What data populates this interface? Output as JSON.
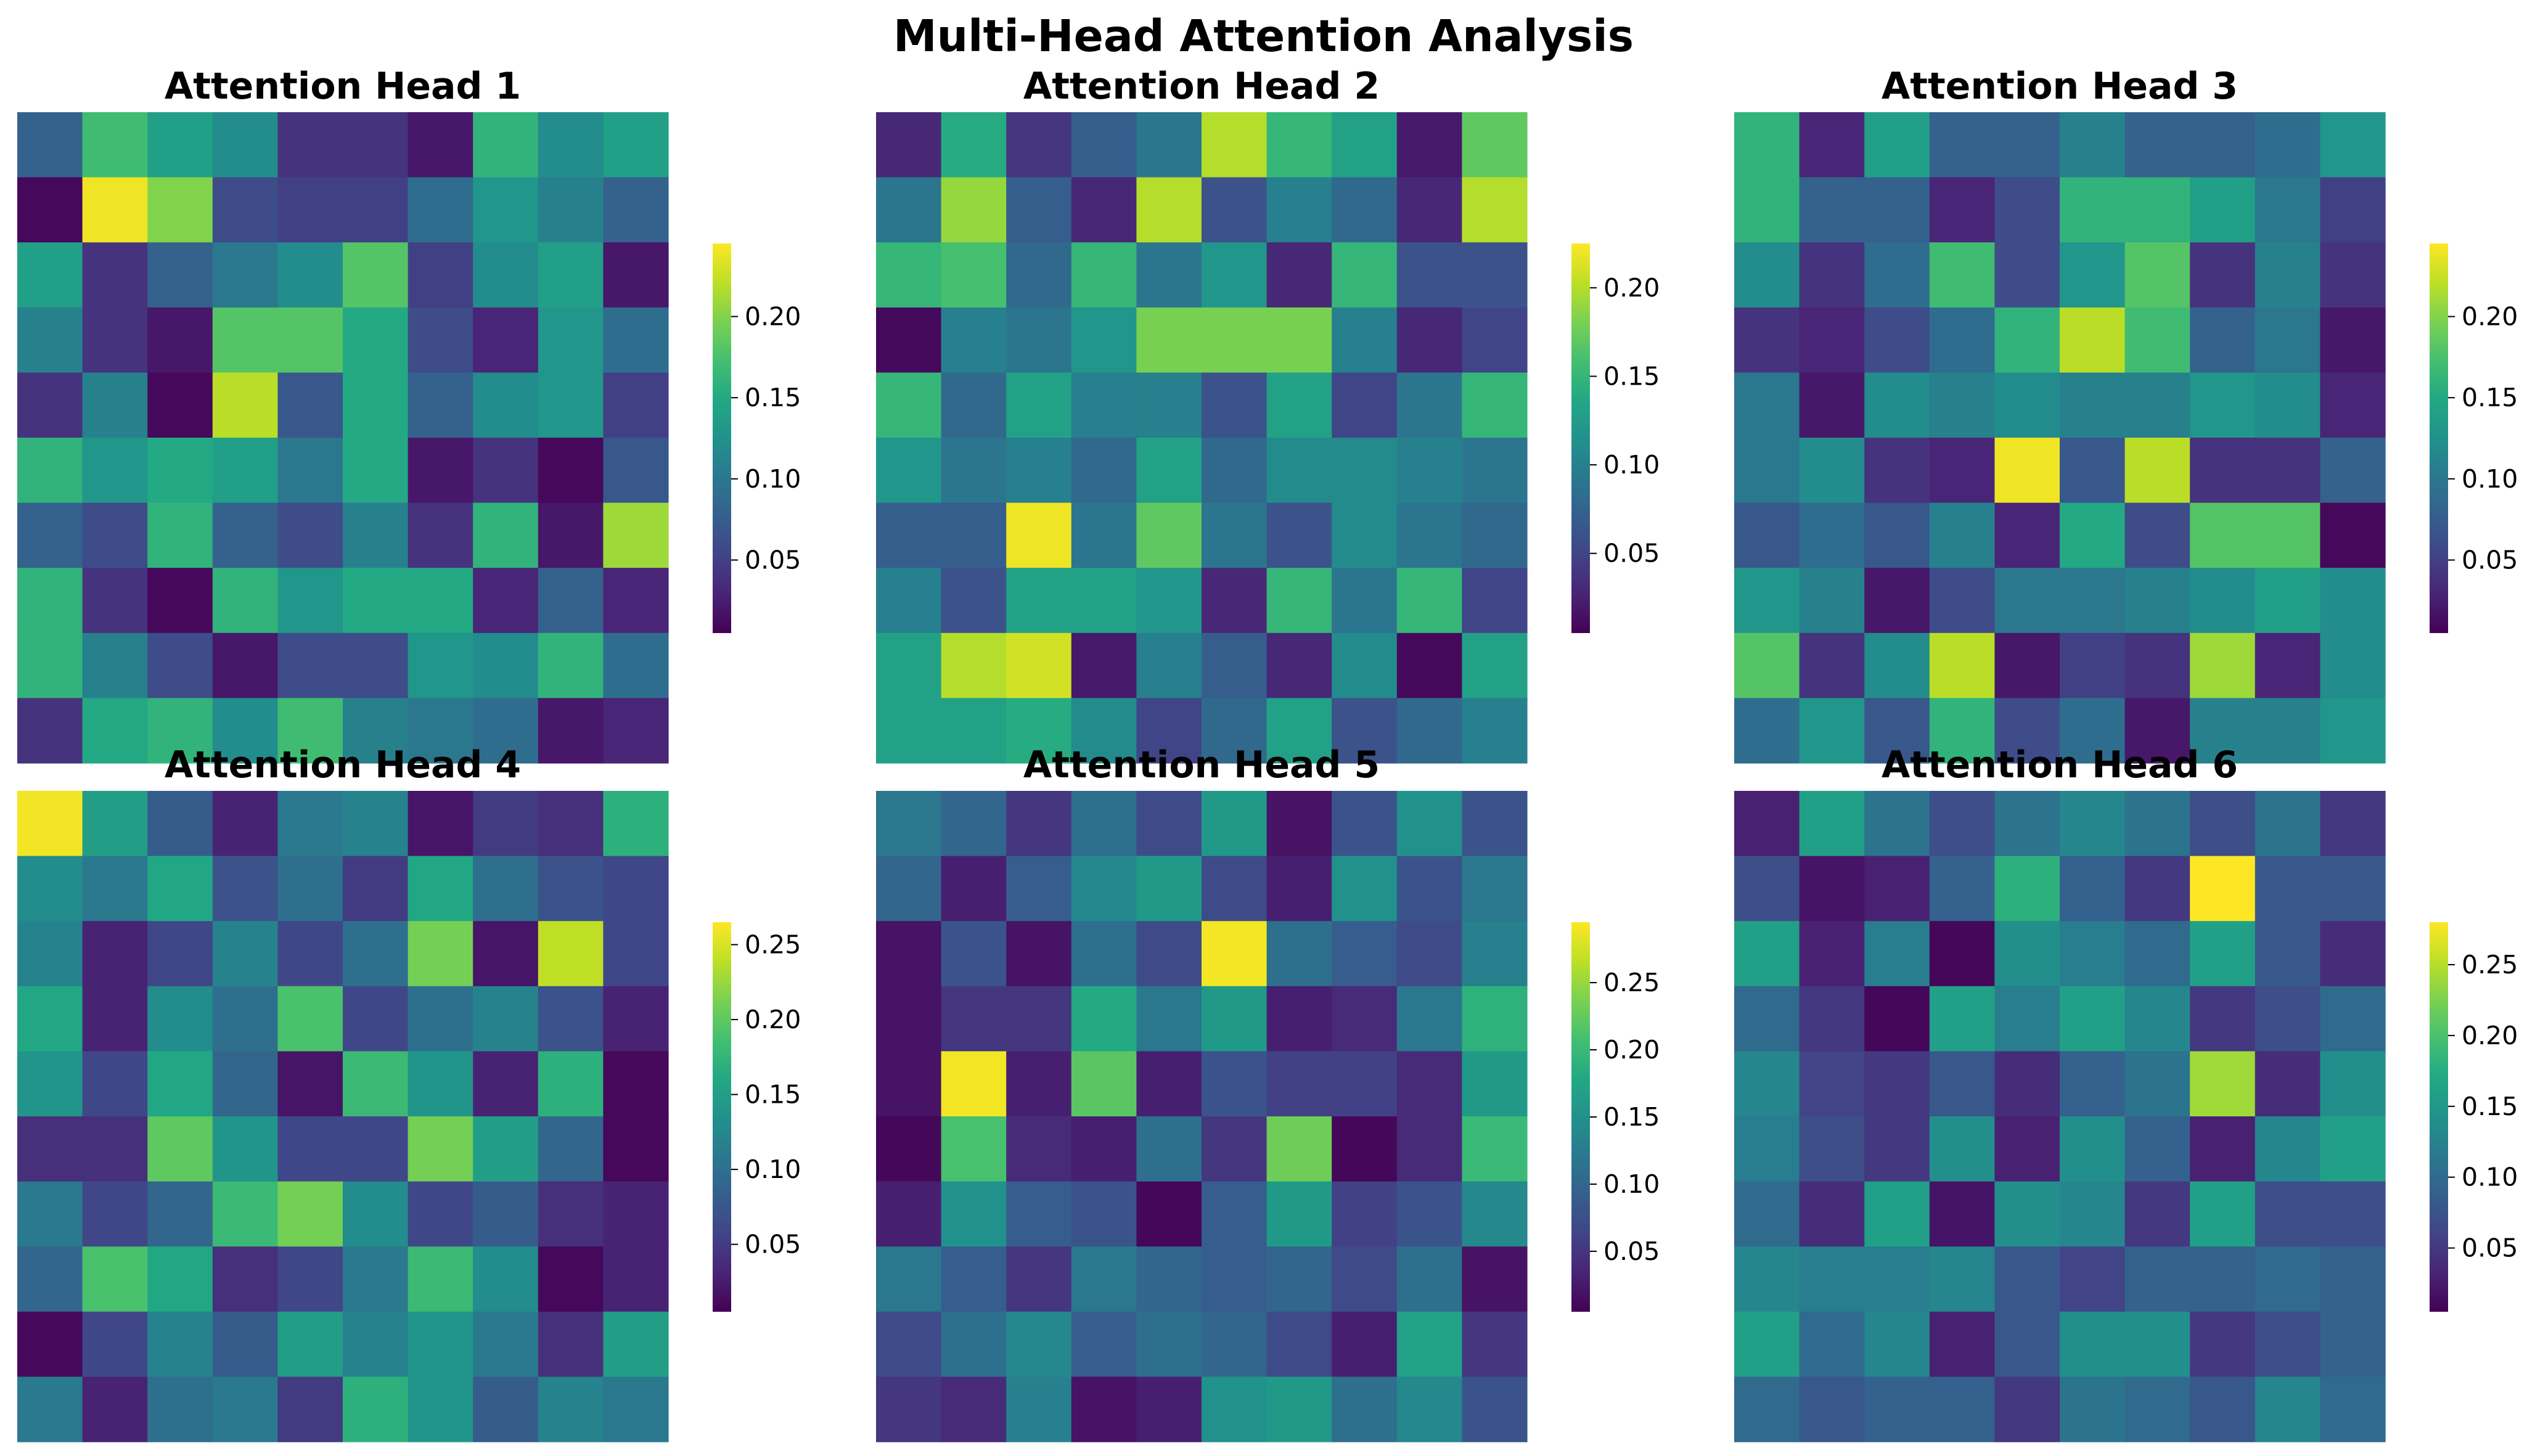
{
  "suptitle": "Multi-Head Attention Analysis",
  "chart_data": [
    {
      "type": "heatmap",
      "title": "Attention Head 1",
      "colormap": "viridis",
      "vmin": 0.005,
      "vmax": 0.245,
      "colorbar_ticks": [
        0.05,
        0.1,
        0.15,
        0.2
      ],
      "colorbar_tick_labels": [
        "0.05",
        "0.10",
        "0.15",
        "0.20"
      ],
      "values": [
        [
          0.08,
          0.17,
          0.14,
          0.12,
          0.04,
          0.04,
          0.02,
          0.16,
          0.12,
          0.14
        ],
        [
          0.01,
          0.24,
          0.2,
          0.06,
          0.05,
          0.05,
          0.09,
          0.13,
          0.11,
          0.08
        ],
        [
          0.14,
          0.04,
          0.08,
          0.1,
          0.12,
          0.18,
          0.05,
          0.12,
          0.14,
          0.02
        ],
        [
          0.11,
          0.04,
          0.02,
          0.18,
          0.18,
          0.15,
          0.06,
          0.03,
          0.13,
          0.09
        ],
        [
          0.04,
          0.11,
          0.01,
          0.22,
          0.07,
          0.15,
          0.08,
          0.12,
          0.13,
          0.05
        ],
        [
          0.16,
          0.13,
          0.15,
          0.14,
          0.1,
          0.15,
          0.02,
          0.04,
          0.01,
          0.07
        ],
        [
          0.08,
          0.06,
          0.16,
          0.08,
          0.06,
          0.11,
          0.04,
          0.16,
          0.02,
          0.21
        ],
        [
          0.16,
          0.04,
          0.01,
          0.16,
          0.13,
          0.15,
          0.15,
          0.03,
          0.08,
          0.03
        ],
        [
          0.16,
          0.11,
          0.06,
          0.02,
          0.06,
          0.06,
          0.13,
          0.12,
          0.16,
          0.09
        ],
        [
          0.04,
          0.15,
          0.16,
          0.12,
          0.17,
          0.11,
          0.1,
          0.09,
          0.02,
          0.03
        ]
      ]
    },
    {
      "type": "heatmap",
      "title": "Attention Head 2",
      "colormap": "viridis",
      "vmin": 0.005,
      "vmax": 0.225,
      "colorbar_ticks": [
        0.05,
        0.1,
        0.15,
        0.2
      ],
      "colorbar_tick_labels": [
        "0.05",
        "0.10",
        "0.15",
        "0.20"
      ],
      "values": [
        [
          0.03,
          0.14,
          0.04,
          0.07,
          0.09,
          0.2,
          0.15,
          0.13,
          0.02,
          0.17
        ],
        [
          0.09,
          0.19,
          0.07,
          0.03,
          0.2,
          0.06,
          0.1,
          0.08,
          0.03,
          0.2
        ],
        [
          0.15,
          0.16,
          0.08,
          0.15,
          0.09,
          0.12,
          0.03,
          0.15,
          0.06,
          0.06
        ],
        [
          0.01,
          0.1,
          0.09,
          0.12,
          0.18,
          0.18,
          0.18,
          0.1,
          0.03,
          0.05
        ],
        [
          0.15,
          0.08,
          0.13,
          0.1,
          0.1,
          0.06,
          0.13,
          0.05,
          0.09,
          0.15
        ],
        [
          0.12,
          0.09,
          0.1,
          0.08,
          0.13,
          0.08,
          0.11,
          0.11,
          0.1,
          0.09
        ],
        [
          0.07,
          0.07,
          0.22,
          0.09,
          0.17,
          0.09,
          0.06,
          0.11,
          0.09,
          0.08
        ],
        [
          0.1,
          0.06,
          0.13,
          0.13,
          0.12,
          0.03,
          0.15,
          0.09,
          0.15,
          0.05
        ],
        [
          0.13,
          0.2,
          0.21,
          0.02,
          0.1,
          0.07,
          0.03,
          0.11,
          0.01,
          0.13
        ],
        [
          0.13,
          0.13,
          0.14,
          0.11,
          0.05,
          0.08,
          0.13,
          0.06,
          0.08,
          0.1
        ]
      ]
    },
    {
      "type": "heatmap",
      "title": "Attention Head 3",
      "colormap": "viridis",
      "vmin": 0.005,
      "vmax": 0.245,
      "colorbar_ticks": [
        0.05,
        0.1,
        0.15,
        0.2
      ],
      "colorbar_tick_labels": [
        "0.05",
        "0.10",
        "0.15",
        "0.20"
      ],
      "values": [
        [
          0.16,
          0.03,
          0.14,
          0.08,
          0.08,
          0.11,
          0.08,
          0.08,
          0.09,
          0.13
        ],
        [
          0.16,
          0.08,
          0.08,
          0.03,
          0.06,
          0.16,
          0.16,
          0.14,
          0.1,
          0.05
        ],
        [
          0.12,
          0.04,
          0.09,
          0.17,
          0.06,
          0.13,
          0.18,
          0.04,
          0.11,
          0.04
        ],
        [
          0.04,
          0.03,
          0.06,
          0.09,
          0.16,
          0.22,
          0.17,
          0.08,
          0.1,
          0.02
        ],
        [
          0.1,
          0.02,
          0.12,
          0.11,
          0.12,
          0.11,
          0.11,
          0.13,
          0.12,
          0.03
        ],
        [
          0.1,
          0.12,
          0.04,
          0.03,
          0.24,
          0.07,
          0.22,
          0.04,
          0.04,
          0.08
        ],
        [
          0.07,
          0.09,
          0.07,
          0.11,
          0.03,
          0.15,
          0.06,
          0.18,
          0.18,
          0.01
        ],
        [
          0.13,
          0.11,
          0.02,
          0.06,
          0.1,
          0.1,
          0.11,
          0.12,
          0.14,
          0.12
        ],
        [
          0.18,
          0.04,
          0.12,
          0.22,
          0.02,
          0.05,
          0.04,
          0.21,
          0.03,
          0.12
        ],
        [
          0.09,
          0.13,
          0.07,
          0.16,
          0.06,
          0.09,
          0.02,
          0.11,
          0.11,
          0.13
        ]
      ]
    },
    {
      "type": "heatmap",
      "title": "Attention Head 4",
      "colormap": "viridis",
      "vmin": 0.005,
      "vmax": 0.265,
      "colorbar_ticks": [
        0.05,
        0.1,
        0.15,
        0.2,
        0.25
      ],
      "colorbar_tick_labels": [
        "0.05",
        "0.10",
        "0.15",
        "0.20",
        "0.25"
      ],
      "values": [
        [
          0.26,
          0.15,
          0.08,
          0.03,
          0.11,
          0.12,
          0.02,
          0.05,
          0.04,
          0.17
        ],
        [
          0.13,
          0.11,
          0.16,
          0.07,
          0.1,
          0.05,
          0.16,
          0.1,
          0.07,
          0.06
        ],
        [
          0.12,
          0.03,
          0.06,
          0.12,
          0.06,
          0.1,
          0.21,
          0.02,
          0.24,
          0.06
        ],
        [
          0.16,
          0.03,
          0.13,
          0.1,
          0.19,
          0.06,
          0.1,
          0.12,
          0.07,
          0.03
        ],
        [
          0.14,
          0.06,
          0.16,
          0.09,
          0.02,
          0.18,
          0.14,
          0.03,
          0.17,
          0.01
        ],
        [
          0.04,
          0.04,
          0.2,
          0.14,
          0.06,
          0.06,
          0.21,
          0.15,
          0.09,
          0.01
        ],
        [
          0.11,
          0.06,
          0.09,
          0.18,
          0.21,
          0.13,
          0.06,
          0.08,
          0.04,
          0.03
        ],
        [
          0.09,
          0.19,
          0.16,
          0.04,
          0.06,
          0.11,
          0.18,
          0.13,
          0.01,
          0.03
        ],
        [
          0.01,
          0.06,
          0.12,
          0.08,
          0.15,
          0.12,
          0.14,
          0.11,
          0.04,
          0.15
        ],
        [
          0.11,
          0.03,
          0.1,
          0.11,
          0.05,
          0.17,
          0.14,
          0.08,
          0.12,
          0.11
        ]
      ]
    },
    {
      "type": "heatmap",
      "title": "Attention Head 5",
      "colormap": "viridis",
      "vmin": 0.005,
      "vmax": 0.295,
      "colorbar_ticks": [
        0.05,
        0.1,
        0.15,
        0.2,
        0.25
      ],
      "colorbar_tick_labels": [
        "0.05",
        "0.10",
        "0.15",
        "0.20",
        "0.25"
      ],
      "values": [
        [
          0.12,
          0.1,
          0.05,
          0.11,
          0.07,
          0.16,
          0.02,
          0.08,
          0.15,
          0.08
        ],
        [
          0.1,
          0.03,
          0.09,
          0.14,
          0.16,
          0.07,
          0.03,
          0.15,
          0.08,
          0.12
        ],
        [
          0.02,
          0.08,
          0.02,
          0.11,
          0.07,
          0.29,
          0.11,
          0.09,
          0.07,
          0.13
        ],
        [
          0.02,
          0.05,
          0.05,
          0.18,
          0.12,
          0.16,
          0.03,
          0.04,
          0.12,
          0.19
        ],
        [
          0.02,
          0.29,
          0.03,
          0.22,
          0.03,
          0.08,
          0.06,
          0.06,
          0.04,
          0.16
        ],
        [
          0.01,
          0.21,
          0.04,
          0.03,
          0.11,
          0.05,
          0.23,
          0.01,
          0.04,
          0.2
        ],
        [
          0.03,
          0.15,
          0.09,
          0.08,
          0.01,
          0.09,
          0.16,
          0.06,
          0.08,
          0.14
        ],
        [
          0.12,
          0.09,
          0.05,
          0.12,
          0.1,
          0.09,
          0.1,
          0.07,
          0.11,
          0.02
        ],
        [
          0.07,
          0.11,
          0.14,
          0.09,
          0.11,
          0.1,
          0.07,
          0.03,
          0.17,
          0.05
        ],
        [
          0.05,
          0.04,
          0.13,
          0.02,
          0.03,
          0.15,
          0.16,
          0.11,
          0.14,
          0.08
        ]
      ]
    },
    {
      "type": "heatmap",
      "title": "Attention Head 6",
      "colormap": "viridis",
      "vmin": 0.005,
      "vmax": 0.28,
      "colorbar_ticks": [
        0.05,
        0.1,
        0.15,
        0.2,
        0.25
      ],
      "colorbar_tick_labels": [
        "0.05",
        "0.10",
        "0.15",
        "0.20",
        "0.25"
      ],
      "values": [
        [
          0.03,
          0.16,
          0.11,
          0.07,
          0.11,
          0.13,
          0.11,
          0.07,
          0.11,
          0.05
        ],
        [
          0.07,
          0.02,
          0.03,
          0.09,
          0.18,
          0.09,
          0.05,
          0.28,
          0.08,
          0.08
        ],
        [
          0.16,
          0.03,
          0.12,
          0.01,
          0.14,
          0.12,
          0.1,
          0.16,
          0.08,
          0.04
        ],
        [
          0.1,
          0.05,
          0.01,
          0.16,
          0.12,
          0.16,
          0.13,
          0.05,
          0.07,
          0.1
        ],
        [
          0.13,
          0.06,
          0.05,
          0.08,
          0.04,
          0.09,
          0.11,
          0.24,
          0.04,
          0.14
        ],
        [
          0.12,
          0.07,
          0.05,
          0.14,
          0.03,
          0.14,
          0.09,
          0.03,
          0.13,
          0.16
        ],
        [
          0.1,
          0.04,
          0.16,
          0.02,
          0.14,
          0.13,
          0.05,
          0.16,
          0.07,
          0.07
        ],
        [
          0.13,
          0.12,
          0.12,
          0.13,
          0.08,
          0.06,
          0.09,
          0.09,
          0.1,
          0.09
        ],
        [
          0.16,
          0.1,
          0.13,
          0.03,
          0.08,
          0.14,
          0.14,
          0.05,
          0.07,
          0.09
        ],
        [
          0.1,
          0.08,
          0.09,
          0.09,
          0.05,
          0.11,
          0.1,
          0.08,
          0.13,
          0.1
        ]
      ]
    }
  ]
}
